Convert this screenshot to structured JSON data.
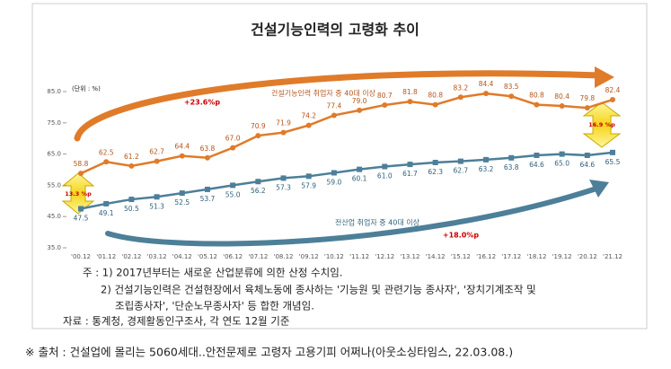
{
  "chart_data": {
    "type": "line",
    "title": "건설기능인력의 고령화 추이",
    "unit": "(단위 : %)",
    "categories": [
      "'00.12",
      "'01.12",
      "'02.12",
      "'03.12",
      "'04.12",
      "'05.12",
      "'06.12",
      "'07.12",
      "'08.12",
      "'09.12",
      "'10.12",
      "'11.12",
      "'12.12",
      "'13.12",
      "'14.12",
      "'15.12",
      "'16.12",
      "'17.12",
      "'18.12",
      "'19.12",
      "'20.12",
      "'21.12"
    ],
    "series": [
      {
        "name": "건설기능인력 취업자 중 40대 이상",
        "color": "#e07b2a",
        "values": [
          58.8,
          62.5,
          61.2,
          62.7,
          64.4,
          63.8,
          67.0,
          70.9,
          71.9,
          74.2,
          77.4,
          79.0,
          80.7,
          81.8,
          80.8,
          83.2,
          84.4,
          83.5,
          80.8,
          80.4,
          79.8,
          82.4
        ],
        "value_labels": [
          "58.8",
          "62.5",
          "61.2",
          "62.7",
          "64.4",
          "63.8",
          "67.0",
          "70.9",
          "71.9",
          "74.2",
          "77.4",
          "79.0",
          "80.7",
          "81.8",
          "80.8",
          "83.2",
          "84.4",
          "83.5",
          "80.8",
          "80.4",
          "79.8",
          "82.4"
        ]
      },
      {
        "name": "전산업 취업자 중 40대 이상",
        "color": "#4d7f99",
        "values": [
          47.5,
          49.1,
          50.5,
          51.3,
          52.5,
          53.7,
          55.0,
          56.2,
          57.3,
          57.9,
          59.0,
          60.1,
          61.0,
          61.7,
          62.3,
          62.7,
          63.2,
          63.8,
          64.6,
          65.0,
          64.6,
          65.5
        ],
        "value_labels": [
          "47.5",
          "49.1",
          "50.5",
          "51.3",
          "52.5",
          "53.7",
          "55.0",
          "56.2",
          "57.3",
          "57.9",
          "59.0",
          "60.1",
          "61.0",
          "61.7",
          "62.3",
          "62.7",
          "63.2",
          "63.8",
          "64.6",
          "65.0",
          "64.6",
          "65.5"
        ]
      }
    ],
    "ylim": [
      35,
      85
    ],
    "yticks": [
      {
        "value": 35,
        "label": "35.0"
      },
      {
        "value": 45,
        "label": "45.0"
      },
      {
        "value": 55,
        "label": "55.0"
      },
      {
        "value": 65,
        "label": "65.0"
      },
      {
        "value": 75,
        "label": "75.0"
      },
      {
        "value": 85,
        "label": "85.0"
      }
    ],
    "grid": false,
    "annotations": [
      "+23.6%p",
      "+18.0%p",
      "13.3 %p",
      "16.9 %p"
    ],
    "notes": [
      "주 : 1) 2017년부터는 새로운 산업분류에 의한 산정 수치임.",
      "2) 건설기능인력은 건설현장에서 육체노동에 종사하는 '기능원 및 관련기능 종사자', '장치기계조작 및",
      "조립종사자', '단순노무종사자' 등 합한 개념임.",
      "자료 : 통계청, 경제활동인구조사, 각 연도 12월 기준"
    ],
    "source": "※ 출처 : 건설업에 몰리는 5060세대..안전문제로 고령자 고용기피 어쩌나(아웃소싱타임스, 22.03.08.)"
  }
}
